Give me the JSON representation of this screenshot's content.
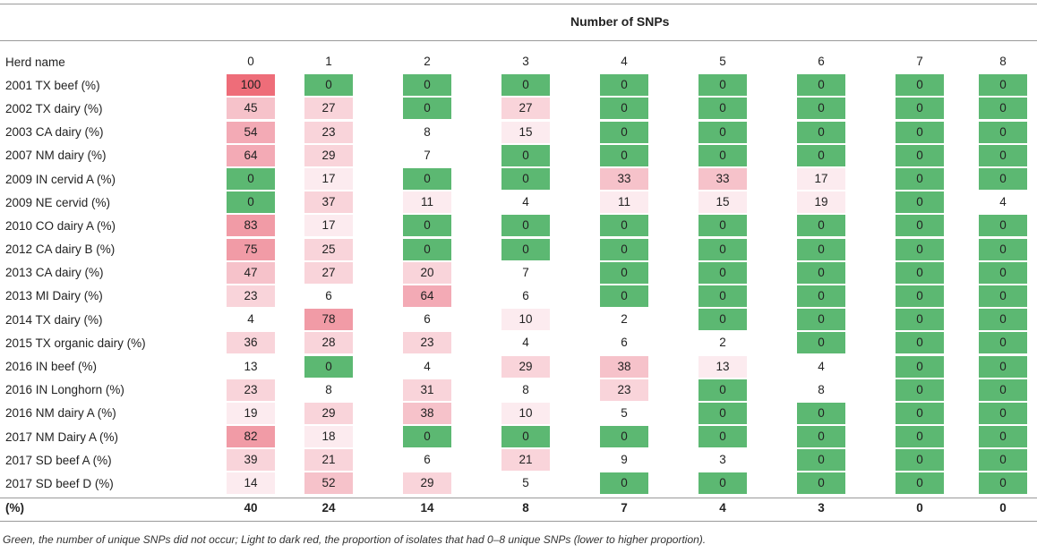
{
  "title": "Number of SNPs",
  "header": {
    "row_label": "Herd name",
    "columns": [
      "0",
      "1",
      "2",
      "3",
      "4",
      "5",
      "6",
      "7",
      "8"
    ]
  },
  "rows": [
    {
      "name": "2001 TX beef (%)",
      "values": [
        100,
        0,
        0,
        0,
        0,
        0,
        0,
        0,
        0
      ]
    },
    {
      "name": "2002 TX dairy (%)",
      "values": [
        45,
        27,
        0,
        27,
        0,
        0,
        0,
        0,
        0
      ]
    },
    {
      "name": "2003 CA dairy (%)",
      "values": [
        54,
        23,
        8,
        15,
        0,
        0,
        0,
        0,
        0
      ]
    },
    {
      "name": "2007 NM dairy (%)",
      "values": [
        64,
        29,
        7,
        0,
        0,
        0,
        0,
        0,
        0
      ]
    },
    {
      "name": "2009 IN cervid A (%)",
      "values": [
        0,
        17,
        0,
        0,
        33,
        33,
        17,
        0,
        0
      ]
    },
    {
      "name": "2009 NE cervid (%)",
      "values": [
        0,
        37,
        11,
        4,
        11,
        15,
        19,
        0,
        4
      ]
    },
    {
      "name": "2010 CO dairy A (%)",
      "values": [
        83,
        17,
        0,
        0,
        0,
        0,
        0,
        0,
        0
      ]
    },
    {
      "name": "2012 CA dairy B (%)",
      "values": [
        75,
        25,
        0,
        0,
        0,
        0,
        0,
        0,
        0
      ]
    },
    {
      "name": "2013 CA dairy (%)",
      "values": [
        47,
        27,
        20,
        7,
        0,
        0,
        0,
        0,
        0
      ]
    },
    {
      "name": "2013 MI Dairy (%)",
      "values": [
        23,
        6,
        64,
        6,
        0,
        0,
        0,
        0,
        0
      ]
    },
    {
      "name": "2014 TX dairy (%)",
      "values": [
        4,
        78,
        6,
        10,
        2,
        0,
        0,
        0,
        0
      ]
    },
    {
      "name": "2015 TX organic dairy (%)",
      "values": [
        36,
        28,
        23,
        4,
        6,
        2,
        0,
        0,
        0
      ]
    },
    {
      "name": "2016 IN beef (%)",
      "values": [
        13,
        0,
        4,
        29,
        38,
        13,
        4,
        0,
        0
      ]
    },
    {
      "name": "2016 IN Longhorn (%)",
      "values": [
        23,
        8,
        31,
        8,
        23,
        0,
        8,
        0,
        0
      ]
    },
    {
      "name": "2016 NM dairy A (%)",
      "values": [
        19,
        29,
        38,
        10,
        5,
        0,
        0,
        0,
        0
      ]
    },
    {
      "name": "2017 NM Dairy A (%)",
      "values": [
        82,
        18,
        0,
        0,
        0,
        0,
        0,
        0,
        0
      ]
    },
    {
      "name": "2017 SD beef A (%)",
      "values": [
        39,
        21,
        6,
        21,
        9,
        3,
        0,
        0,
        0
      ]
    },
    {
      "name": "2017 SD beef D (%)",
      "values": [
        14,
        52,
        29,
        5,
        0,
        0,
        0,
        0,
        0
      ]
    }
  ],
  "totals": {
    "label": "(%)",
    "values": [
      40,
      24,
      14,
      8,
      7,
      4,
      3,
      0,
      0
    ]
  },
  "cell_styles": [
    [
      "r5",
      "g",
      "g",
      "g",
      "g",
      "g",
      "g",
      "g",
      "g"
    ],
    [
      "r2",
      "r1",
      "g",
      "r1",
      "g",
      "g",
      "g",
      "g",
      "g"
    ],
    [
      "r3",
      "r1",
      "n",
      "r0",
      "g",
      "g",
      "g",
      "g",
      "g"
    ],
    [
      "r3",
      "r1",
      "n",
      "g",
      "g",
      "g",
      "g",
      "g",
      "g"
    ],
    [
      "g",
      "r0",
      "g",
      "g",
      "r2",
      "r2",
      "r0",
      "g",
      "g"
    ],
    [
      "g",
      "r1",
      "r0",
      "n",
      "r0",
      "r0",
      "r0",
      "g",
      "n"
    ],
    [
      "r4",
      "r0",
      "g",
      "g",
      "g",
      "g",
      "g",
      "g",
      "g"
    ],
    [
      "r4",
      "r1",
      "g",
      "g",
      "g",
      "g",
      "g",
      "g",
      "g"
    ],
    [
      "r2",
      "r1",
      "r1",
      "n",
      "g",
      "g",
      "g",
      "g",
      "g"
    ],
    [
      "r1",
      "n",
      "r3",
      "n",
      "g",
      "g",
      "g",
      "g",
      "g"
    ],
    [
      "n",
      "r4",
      "n",
      "r0",
      "n",
      "g",
      "g",
      "g",
      "g"
    ],
    [
      "r1",
      "r1",
      "r1",
      "n",
      "n",
      "n",
      "g",
      "g",
      "g"
    ],
    [
      "n",
      "g",
      "n",
      "r1",
      "r2",
      "r0",
      "n",
      "g",
      "g"
    ],
    [
      "r1",
      "n",
      "r1",
      "n",
      "r1",
      "g",
      "n",
      "g",
      "g"
    ],
    [
      "r0",
      "r1",
      "r2",
      "r0",
      "n",
      "g",
      "g",
      "g",
      "g"
    ],
    [
      "r4",
      "r0",
      "g",
      "g",
      "g",
      "g",
      "g",
      "g",
      "g"
    ],
    [
      "r1",
      "r1",
      "n",
      "r1",
      "n",
      "n",
      "g",
      "g",
      "g"
    ],
    [
      "r0",
      "r2",
      "r1",
      "n",
      "g",
      "g",
      "g",
      "g",
      "g"
    ]
  ],
  "colors": {
    "g": "#5cb872",
    "n": "transparent",
    "r0": "#fcebef",
    "r1": "#f9d4da",
    "r2": "#f6c2ca",
    "r3": "#f3aab5",
    "r4": "#f19ba6",
    "r5": "#ee6d79"
  },
  "footnote": "Green, the number of unique SNPs did not occur; Light to dark red, the proportion of isolates that had 0–8 unique SNPs (lower to higher proportion)."
}
